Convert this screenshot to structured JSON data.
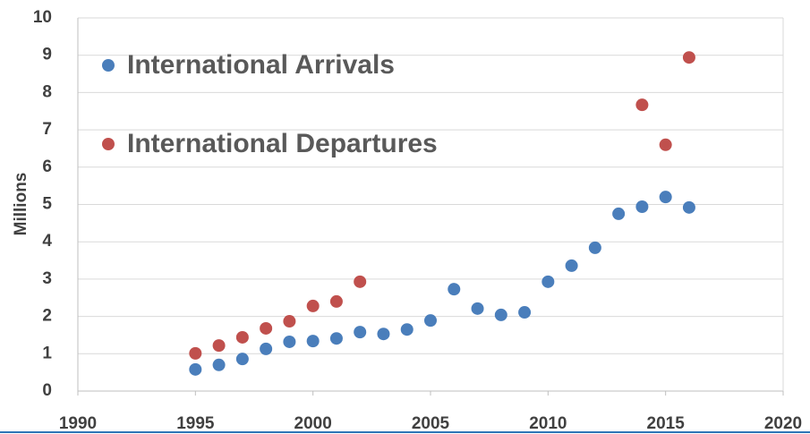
{
  "chart_data": {
    "type": "scatter",
    "y_label": "Millions",
    "xlim": [
      1990,
      2020
    ],
    "xticks": [
      1990,
      1995,
      2000,
      2005,
      2010,
      2015,
      2020
    ],
    "ylim": [
      0,
      10
    ],
    "yticks": [
      0,
      1,
      2,
      3,
      4,
      5,
      6,
      7,
      8,
      9,
      10
    ],
    "grid": true,
    "legend": "upper left",
    "series": [
      {
        "name": "International Arrivals",
        "color": "#4a7ebb",
        "x": [
          1995,
          1996,
          1997,
          1998,
          1999,
          2000,
          2001,
          2002,
          2003,
          2004,
          2005,
          2006,
          2007,
          2008,
          2009,
          2010,
          2011,
          2012,
          2013,
          2014,
          2015,
          2016
        ],
        "values": [
          0.58,
          0.7,
          0.86,
          1.13,
          1.32,
          1.34,
          1.41,
          1.58,
          1.53,
          1.65,
          1.89,
          2.73,
          2.21,
          2.04,
          2.11,
          2.93,
          3.36,
          3.84,
          4.75,
          4.94,
          5.2,
          4.92
        ]
      },
      {
        "name": "International Departures",
        "color": "#c0504d",
        "x": [
          1995,
          1996,
          1997,
          1998,
          1999,
          2000,
          2001,
          2002,
          2014,
          2015,
          2016
        ],
        "values": [
          1.01,
          1.22,
          1.44,
          1.68,
          1.87,
          2.28,
          2.4,
          2.93,
          7.67,
          6.6,
          8.94
        ]
      }
    ]
  }
}
